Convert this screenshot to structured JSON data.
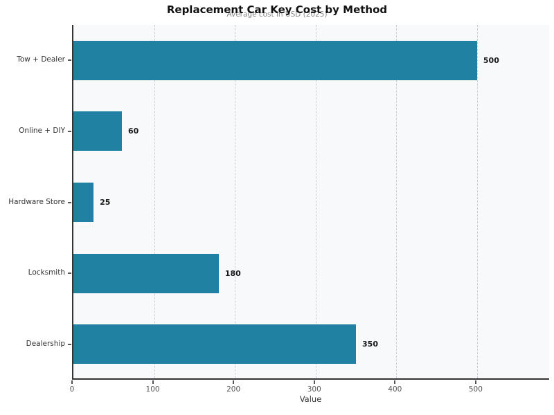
{
  "chart": {
    "title": "Replacement Car Key Cost by Method",
    "subtitle": "Average cost in USD (2025)",
    "xlabel": "Value"
  },
  "chart_data": {
    "type": "bar",
    "orientation": "horizontal",
    "title": "Replacement Car Key Cost by Method",
    "subtitle": "Average cost in USD (2025)",
    "xlabel": "Value",
    "ylabel": "",
    "categories": [
      "Tow + Dealer",
      "Online + DIY",
      "Hardware Store",
      "Locksmith",
      "Dealership"
    ],
    "values": [
      500,
      60,
      25,
      180,
      350
    ],
    "value_labels": [
      "500",
      "60",
      "25",
      "180",
      "350"
    ],
    "xlim": [
      0,
      591
    ],
    "xticks": [
      0,
      100,
      200,
      300,
      400,
      500
    ],
    "grid": "vertical-dashed",
    "legend": "none",
    "colors": {
      "bar": "#2181a3",
      "plot_background": "#f8f9fa",
      "gridline": "#c9cdd1",
      "spine": "#333333",
      "title": "#111111",
      "subtitle": "#8a8a8a",
      "tick_label": "#555555",
      "category_label": "#333333",
      "value_label": "#1a1a1a"
    }
  }
}
